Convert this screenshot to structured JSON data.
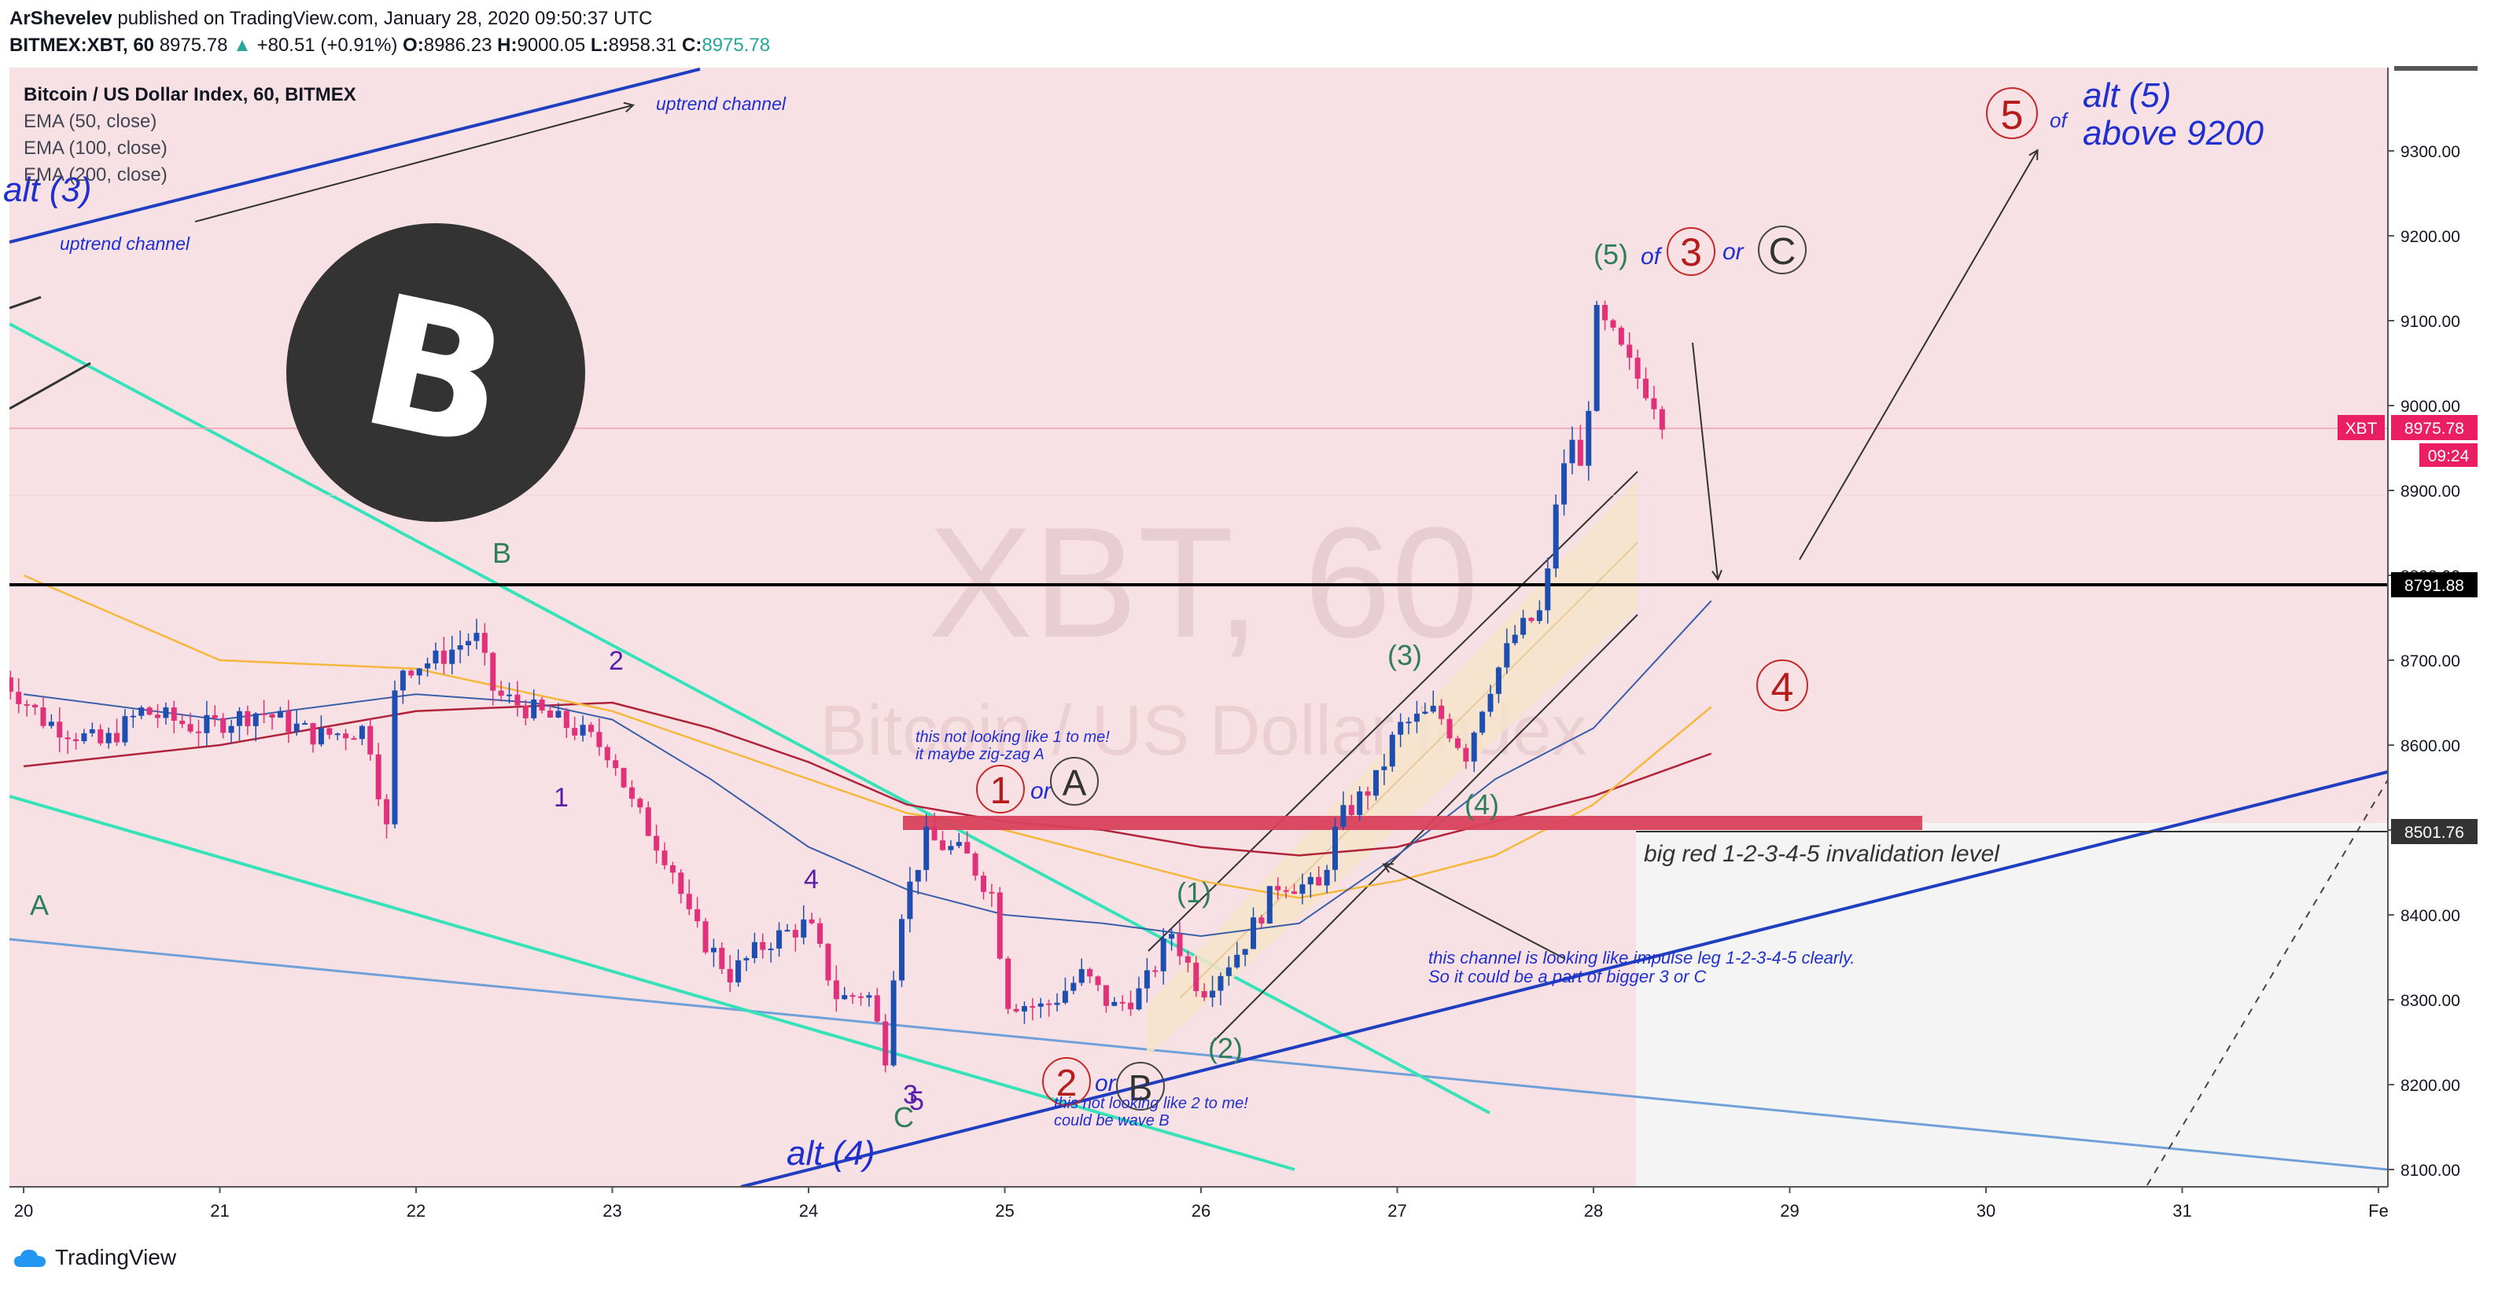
{
  "header": {
    "author": "ArShevelev",
    "published": "published on TradingView.com, January 28, 2020 09:50:37 UTC",
    "symbol": "BITMEX:XBT, 60",
    "last": "8975.78",
    "change": "+80.51 (+0.91%)",
    "o_label": "O:",
    "o": "8986.23",
    "h_label": "H:",
    "h": "9000.05",
    "l_label": "L:",
    "l": "8958.31",
    "c_label": "C:",
    "c": "8975.78"
  },
  "legend": {
    "title": "Bitcoin / US Dollar Index, 60, BITMEX",
    "ema50": "EMA (50, close)",
    "ema100": "EMA (100, close)",
    "ema200": "EMA (200, close)"
  },
  "watermark": {
    "line1": "XBT, 60",
    "line2": "Bitcoin / US Dollar Index"
  },
  "footer": {
    "brand": "TradingView"
  },
  "colors": {
    "up": "#1e4fb0",
    "down": "#e0317a",
    "bg_zone": "#f8e1e5",
    "gray_zone": "#f3f3f3",
    "ema50": "#3a5fa8",
    "ema100": "#f5b83d",
    "ema200": "#b0243a",
    "teal": "#38e2b8",
    "lightblue": "#6fa0d8",
    "channel": "#1f3fc0",
    "resistance": "#d9415c",
    "price_tag": "#e91e63"
  },
  "annotations": {
    "alt3": "alt (3)",
    "alt4": "alt (4)",
    "uptrend1": "uptrend channel",
    "uptrend2": "uptrend channel",
    "w5_top": "(5)",
    "of1": "of",
    "w3_circ": "3",
    "or1": "or",
    "wC_circ": "C",
    "w5_circ": "5",
    "of2": "of",
    "alt5_l1": "alt (5)",
    "alt5_l2": "above 9200",
    "w4_circ": "4",
    "w1_circ": "1",
    "or2": "or",
    "wA_circ": "A",
    "note1_l1": "this not looking like 1 to me!",
    "note1_l2": "it maybe zig-zag A",
    "w2_circ": "2",
    "or3": "or",
    "wB_circ": "B",
    "note2_l1": "this not looking like 2 to me!",
    "note2_l2": "could be wave B",
    "note3_l1": "this channel is looking like impulse leg 1-2-3-4-5 clearly.",
    "note3_l2": "So it could be a part of bigger 3 or C",
    "invalidation": "big red 1-2-3-4-5 invalidation level",
    "sw1": "(1)",
    "sw2": "(2)",
    "sw3": "(3)",
    "sw4": "(4)",
    "p1": "1",
    "p2": "2",
    "p3": "3",
    "p4": "4",
    "p5": "5",
    "gA": "A",
    "gB": "B",
    "gC": "C"
  },
  "price_tags": {
    "xbt_label": "XBT",
    "xbt_price": "8975.78",
    "countdown": "09:24",
    "level_8791": "8791.88",
    "level_8501": "8501.76"
  },
  "chart_data": {
    "type": "candlestick",
    "title": "Bitcoin / US Dollar Index, 60, BITMEX",
    "x_ticks": [
      "20",
      "21",
      "22",
      "23",
      "24",
      "25",
      "26",
      "27",
      "28",
      "29",
      "30",
      "31",
      "Fe"
    ],
    "y_ticks": [
      8100,
      8200,
      8300,
      8400,
      8500,
      8600,
      8700,
      8800,
      8900,
      9000,
      9100,
      9200,
      9300
    ],
    "ylim": [
      8075,
      9390
    ],
    "xlim": [
      19.85,
      31.95
    ],
    "horizontal_levels": [
      8791.88,
      8501.76,
      8975.78
    ],
    "resistance_zone": [
      8507,
      8522
    ],
    "series_close_path": [
      [
        19.85,
        8690
      ],
      [
        20.1,
        8630
      ],
      [
        20.4,
        8600
      ],
      [
        20.6,
        8640
      ],
      [
        20.9,
        8620
      ],
      [
        21.2,
        8640
      ],
      [
        21.5,
        8610
      ],
      [
        21.75,
        8620
      ],
      [
        21.85,
        8500
      ],
      [
        21.9,
        8690
      ],
      [
        22.1,
        8700
      ],
      [
        22.3,
        8730
      ],
      [
        22.4,
        8660
      ],
      [
        22.6,
        8640
      ],
      [
        22.8,
        8620
      ],
      [
        23.0,
        8590
      ],
      [
        23.1,
        8530
      ],
      [
        23.3,
        8460
      ],
      [
        23.4,
        8390
      ],
      [
        23.6,
        8330
      ],
      [
        23.8,
        8370
      ],
      [
        24.0,
        8390
      ],
      [
        24.15,
        8300
      ],
      [
        24.3,
        8310
      ],
      [
        24.4,
        8230
      ],
      [
        24.45,
        8390
      ],
      [
        24.6,
        8490
      ],
      [
        24.8,
        8470
      ],
      [
        24.95,
        8420
      ],
      [
        25.0,
        8300
      ],
      [
        25.2,
        8290
      ],
      [
        25.4,
        8330
      ],
      [
        25.55,
        8290
      ],
      [
        25.7,
        8310
      ],
      [
        25.85,
        8380
      ],
      [
        26.0,
        8310
      ],
      [
        26.2,
        8360
      ],
      [
        26.4,
        8440
      ],
      [
        26.6,
        8430
      ],
      [
        26.7,
        8510
      ],
      [
        26.9,
        8560
      ],
      [
        27.0,
        8620
      ],
      [
        27.2,
        8640
      ],
      [
        27.35,
        8590
      ],
      [
        27.45,
        8660
      ],
      [
        27.6,
        8730
      ],
      [
        27.75,
        8760
      ],
      [
        27.8,
        8880
      ],
      [
        27.9,
        8970
      ],
      [
        27.95,
        8900
      ],
      [
        28.0,
        9110
      ],
      [
        28.1,
        9080
      ],
      [
        28.2,
        9040
      ],
      [
        28.3,
        9010
      ],
      [
        28.37,
        8975.78
      ]
    ],
    "ema50": [
      [
        20.0,
        8660
      ],
      [
        21.0,
        8630
      ],
      [
        22.0,
        8660
      ],
      [
        22.6,
        8650
      ],
      [
        23.0,
        8630
      ],
      [
        23.5,
        8560
      ],
      [
        24.0,
        8480
      ],
      [
        24.5,
        8430
      ],
      [
        25.0,
        8400
      ],
      [
        25.5,
        8390
      ],
      [
        26.0,
        8375
      ],
      [
        26.5,
        8390
      ],
      [
        27.0,
        8470
      ],
      [
        27.5,
        8560
      ],
      [
        28.0,
        8620
      ],
      [
        28.6,
        8770
      ]
    ],
    "ema100": [
      [
        20.0,
        8800
      ],
      [
        21.0,
        8700
      ],
      [
        22.0,
        8690
      ],
      [
        23.0,
        8640
      ],
      [
        23.5,
        8600
      ],
      [
        24.0,
        8560
      ],
      [
        24.5,
        8520
      ],
      [
        25.0,
        8500
      ],
      [
        25.5,
        8470
      ],
      [
        26.0,
        8440
      ],
      [
        26.5,
        8420
      ],
      [
        27.0,
        8440
      ],
      [
        27.5,
        8470
      ],
      [
        28.0,
        8530
      ],
      [
        28.6,
        8645
      ]
    ],
    "ema200": [
      [
        20.0,
        8575
      ],
      [
        21.0,
        8600
      ],
      [
        22.0,
        8640
      ],
      [
        23.0,
        8650
      ],
      [
        23.5,
        8620
      ],
      [
        24.0,
        8580
      ],
      [
        24.5,
        8530
      ],
      [
        25.0,
        8510
      ],
      [
        25.5,
        8500
      ],
      [
        26.0,
        8480
      ],
      [
        26.5,
        8470
      ],
      [
        27.0,
        8480
      ],
      [
        27.5,
        8510
      ],
      [
        28.0,
        8540
      ],
      [
        28.6,
        8590
      ]
    ]
  }
}
